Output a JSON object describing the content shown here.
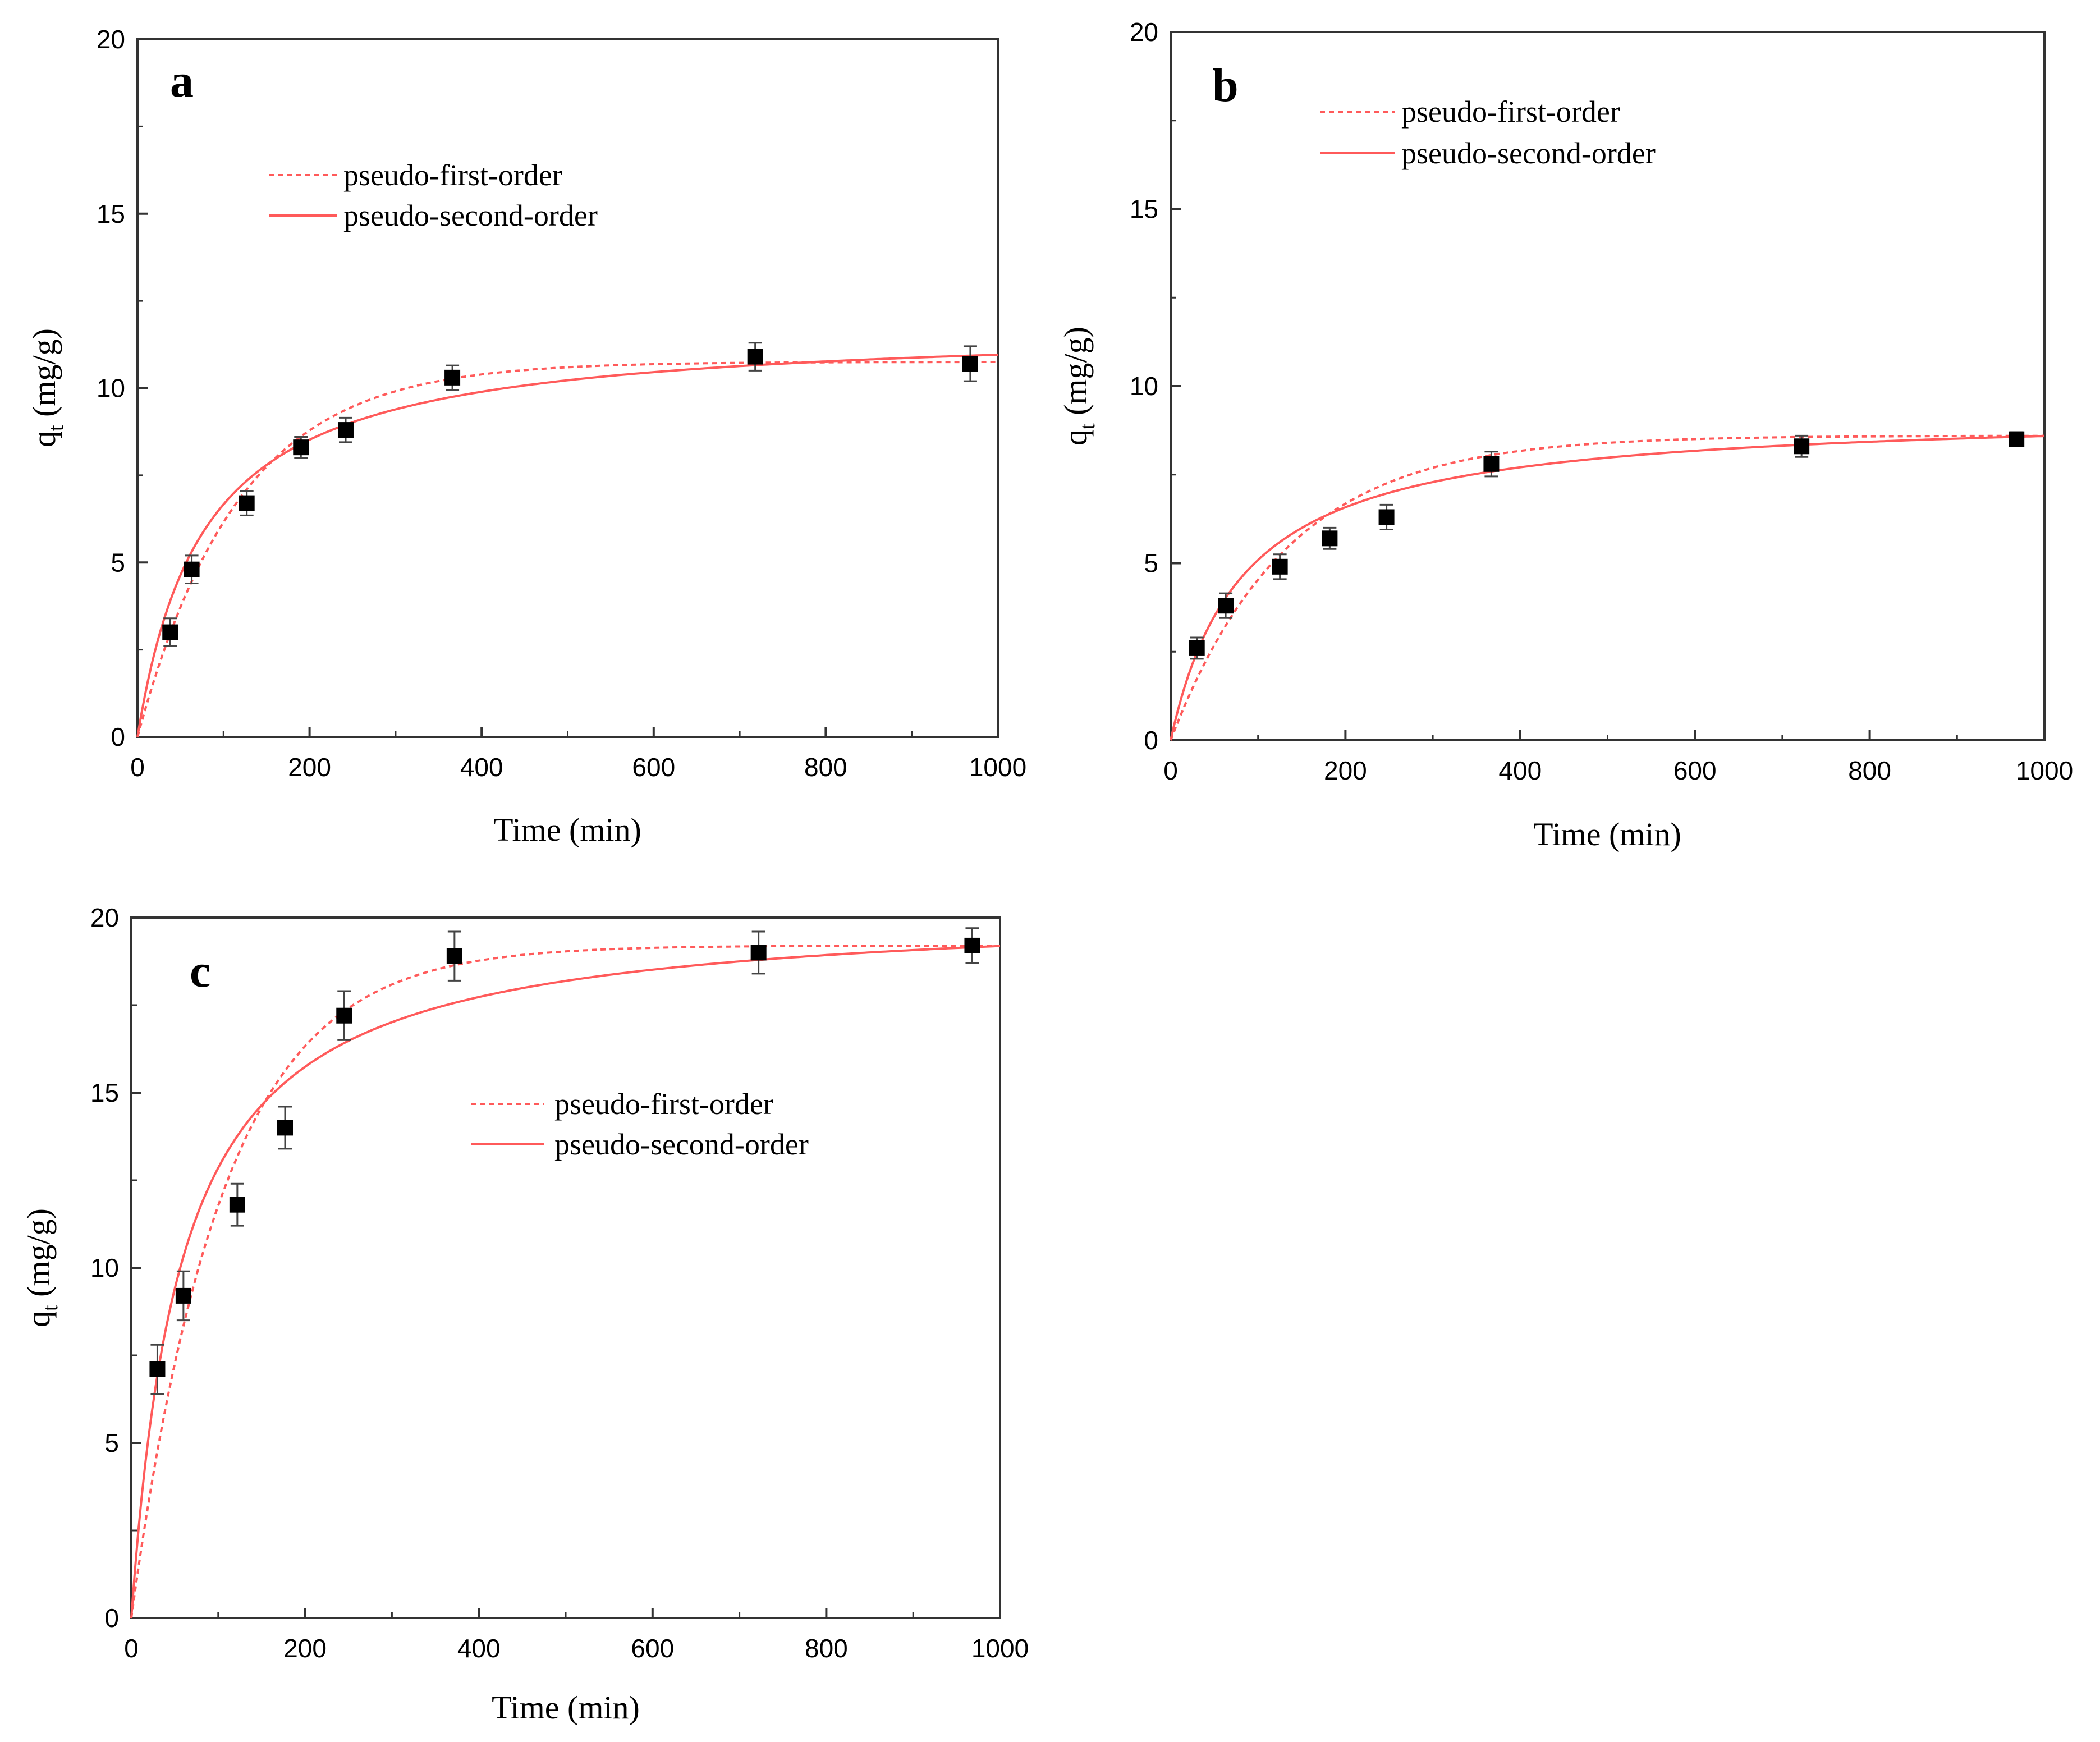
{
  "figure": {
    "accent_color": "#ff5a5a",
    "marker_color": "#000000"
  },
  "chart_data": [
    {
      "type": "scatter",
      "panel": "a",
      "xlabel": "Time (min)",
      "ylabel_main": "q",
      "ylabel_sub": "t",
      "ylabel_unit": " (mg/g)",
      "xlim": [
        0,
        1000
      ],
      "ylim": [
        0,
        20
      ],
      "xticks": [
        0,
        200,
        400,
        600,
        800,
        1000
      ],
      "yticks": [
        0,
        5,
        10,
        15,
        20
      ],
      "points": {
        "x": [
          38,
          63,
          127,
          190,
          242,
          366,
          718,
          968
        ],
        "y": [
          3.0,
          4.8,
          6.7,
          8.3,
          8.8,
          10.3,
          10.9,
          10.7
        ],
        "err": [
          0.4,
          0.4,
          0.35,
          0.3,
          0.35,
          0.35,
          0.4,
          0.5
        ]
      },
      "fits": [
        {
          "name": "pseudo-first-order",
          "model": "first",
          "qe": 10.75,
          "k": 0.0085,
          "style": "dotted"
        },
        {
          "name": "pseudo-second-order",
          "model": "second",
          "qe": 11.8,
          "k": 0.0011,
          "style": "solid"
        }
      ],
      "legend": [
        "pseudo-first-order",
        "pseudo-second-order"
      ]
    },
    {
      "type": "scatter",
      "panel": "b",
      "xlabel": "Time (min)",
      "ylabel_main": "q",
      "ylabel_sub": "t",
      "ylabel_unit": " (mg/g)",
      "xlim": [
        0,
        1000
      ],
      "ylim": [
        0,
        20
      ],
      "xticks": [
        0,
        200,
        400,
        600,
        800,
        1000
      ],
      "yticks": [
        0,
        5,
        10,
        15,
        20
      ],
      "points": {
        "x": [
          30,
          63,
          125,
          182,
          247,
          367,
          722,
          968
        ],
        "y": [
          2.6,
          3.8,
          4.9,
          5.7,
          6.3,
          7.8,
          8.3,
          8.5
        ],
        "err": [
          0.3,
          0.35,
          0.35,
          0.3,
          0.35,
          0.35,
          0.3,
          0.2
        ]
      },
      "fits": [
        {
          "name": "pseudo-first-order",
          "model": "first",
          "qe": 8.6,
          "k": 0.0075,
          "style": "dotted"
        },
        {
          "name": "pseudo-second-order",
          "model": "second",
          "qe": 9.3,
          "k": 0.0013,
          "style": "solid"
        }
      ],
      "legend": [
        "pseudo-first-order",
        "pseudo-second-order"
      ]
    },
    {
      "type": "scatter",
      "panel": "c",
      "xlabel": "Time (min)",
      "ylabel_main": "q",
      "ylabel_sub": "t",
      "ylabel_unit": " (mg/g)",
      "xlim": [
        0,
        1000
      ],
      "ylim": [
        0,
        20
      ],
      "xticks": [
        0,
        200,
        400,
        600,
        800,
        1000
      ],
      "yticks": [
        0,
        5,
        10,
        15,
        20
      ],
      "points": {
        "x": [
          30,
          60,
          122,
          177,
          245,
          372,
          722,
          968
        ],
        "y": [
          7.1,
          9.2,
          11.8,
          14.0,
          17.2,
          18.9,
          19.0,
          19.2
        ],
        "err": [
          0.7,
          0.7,
          0.6,
          0.6,
          0.7,
          0.7,
          0.6,
          0.5
        ]
      },
      "fits": [
        {
          "name": "pseudo-first-order",
          "model": "first",
          "qe": 19.2,
          "k": 0.0095,
          "style": "dotted"
        },
        {
          "name": "pseudo-second-order",
          "model": "second",
          "qe": 20.3,
          "k": 0.00085,
          "style": "solid"
        }
      ],
      "legend": [
        "pseudo-first-order",
        "pseudo-second-order"
      ]
    }
  ]
}
